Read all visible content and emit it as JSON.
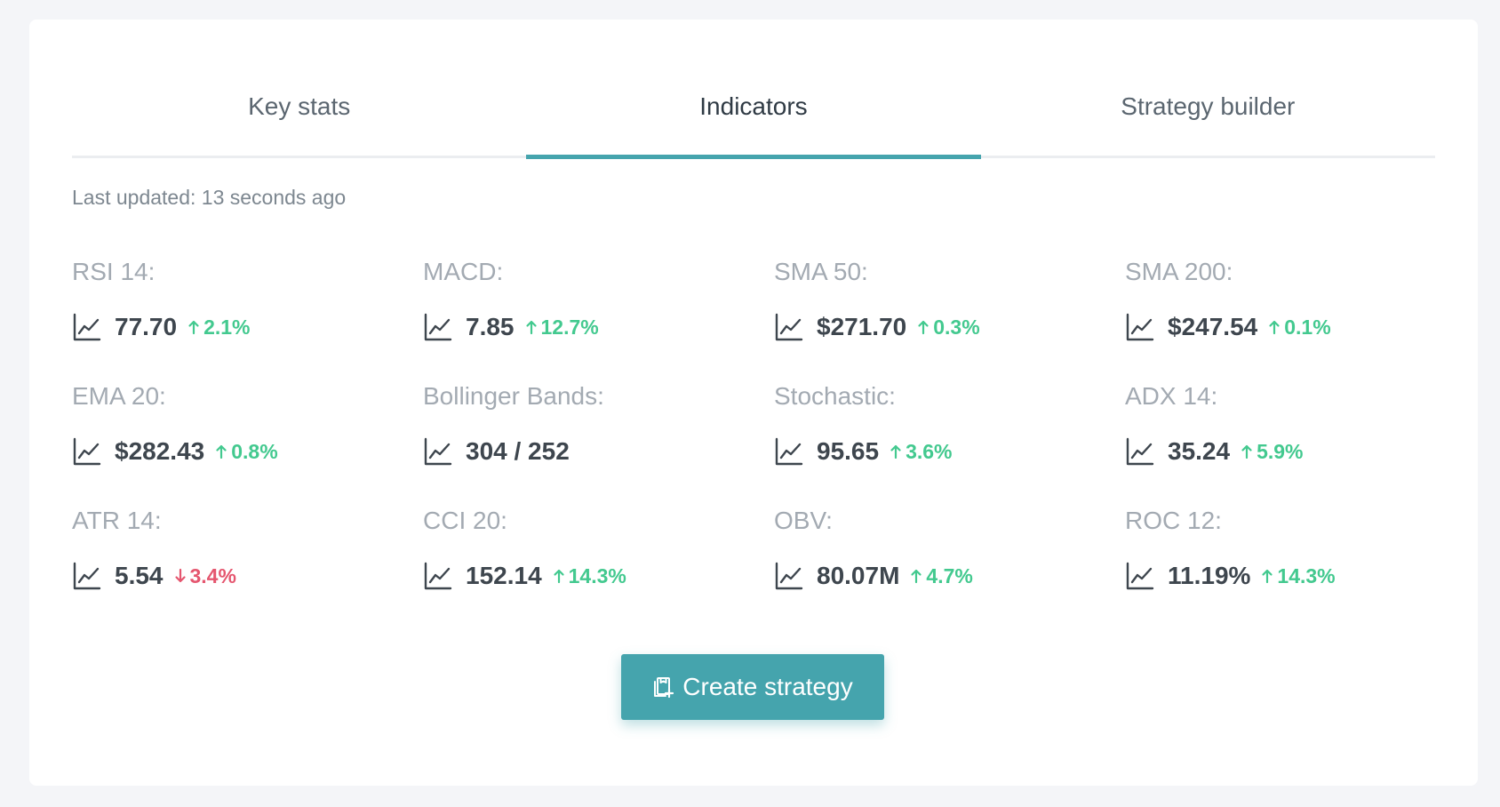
{
  "tabs": [
    {
      "label": "Key stats",
      "active": false
    },
    {
      "label": "Indicators",
      "active": true
    },
    {
      "label": "Strategy builder",
      "active": false
    }
  ],
  "last_updated": "Last updated: 13 seconds ago",
  "indicators": [
    {
      "label": "RSI 14:",
      "value": "77.70",
      "change": "2.1%",
      "direction": "up"
    },
    {
      "label": "MACD:",
      "value": "7.85",
      "change": "12.7%",
      "direction": "up"
    },
    {
      "label": "SMA 50:",
      "value": "$271.70",
      "change": "0.3%",
      "direction": "up"
    },
    {
      "label": "SMA 200:",
      "value": "$247.54",
      "change": "0.1%",
      "direction": "up"
    },
    {
      "label": "EMA 20:",
      "value": "$282.43",
      "change": "0.8%",
      "direction": "up"
    },
    {
      "label": "Bollinger Bands:",
      "value": "304 / 252",
      "change": "",
      "direction": "none"
    },
    {
      "label": "Stochastic:",
      "value": "95.65",
      "change": "3.6%",
      "direction": "up"
    },
    {
      "label": "ADX 14:",
      "value": "35.24",
      "change": "5.9%",
      "direction": "up"
    },
    {
      "label": "ATR 14:",
      "value": "5.54",
      "change": "3.4%",
      "direction": "down"
    },
    {
      "label": "CCI 20:",
      "value": "152.14",
      "change": "14.3%",
      "direction": "up"
    },
    {
      "label": "OBV:",
      "value": "80.07M",
      "change": "4.7%",
      "direction": "up"
    },
    {
      "label": "ROC 12:",
      "value": "11.19%",
      "change": "14.3%",
      "direction": "up"
    }
  ],
  "create_button": {
    "label": "Create strategy",
    "icon": "clipboard-plus-icon"
  },
  "colors": {
    "accent": "#45a4ad",
    "positive": "#43c98f",
    "negative": "#e5566f",
    "label": "#a3aab2",
    "value": "#3e464e"
  }
}
